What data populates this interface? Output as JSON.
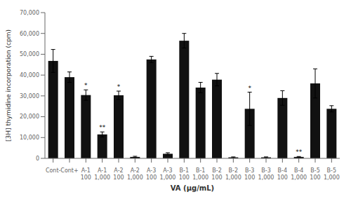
{
  "chart_data": {
    "type": "bar",
    "categories": [
      "Cont-",
      "Cont+",
      "A-1\n100",
      "A-1\n1,000",
      "A-2\n100",
      "A-2\n1,000",
      "A-3\n100",
      "A-3\n1,000",
      "B-1\n100",
      "B-1\n1,000",
      "B-2\n100",
      "B-2\n1,000",
      "B-3\n100",
      "B-3\n1,000",
      "B-4\n100",
      "B-4\n1,000",
      "B-5\n100",
      "B-5\n1,000"
    ],
    "values": [
      46800,
      39000,
      30400,
      11500,
      30300,
      700,
      47500,
      2200,
      56500,
      34000,
      37800,
      500,
      23800,
      500,
      29000,
      700,
      36000,
      23800
    ],
    "errors": [
      5500,
      2500,
      2500,
      1200,
      2000,
      300,
      1500,
      500,
      3500,
      2500,
      3000,
      200,
      8000,
      200,
      3500,
      200,
      7000,
      1500
    ],
    "color": "#111111",
    "annotations": [
      {
        "category": "A-1\n100",
        "text": "*"
      },
      {
        "category": "A-1\n1,000",
        "text": "**"
      },
      {
        "category": "A-2\n100",
        "text": "*"
      },
      {
        "category": "B-3\n100",
        "text": "*"
      },
      {
        "category": "B-4\n1,000",
        "text": "**"
      }
    ],
    "xlabel": "VA (μg/mL)",
    "ylabel": "[3H] thymidine incorporation (cpm)",
    "ylim": [
      0,
      70000
    ],
    "yticks": [
      0,
      {
        "value": 10000,
        "label": "10,000"
      },
      {
        "value": 20000,
        "label": "20,000"
      },
      {
        "value": 30000,
        "label": "30,000"
      },
      {
        "value": 40000,
        "label": "40,000"
      },
      {
        "value": 50000,
        "label": "50,000"
      },
      {
        "value": 60000,
        "label": "60,000"
      },
      {
        "value": 70000,
        "label": "70,000"
      }
    ],
    "grid": false
  }
}
